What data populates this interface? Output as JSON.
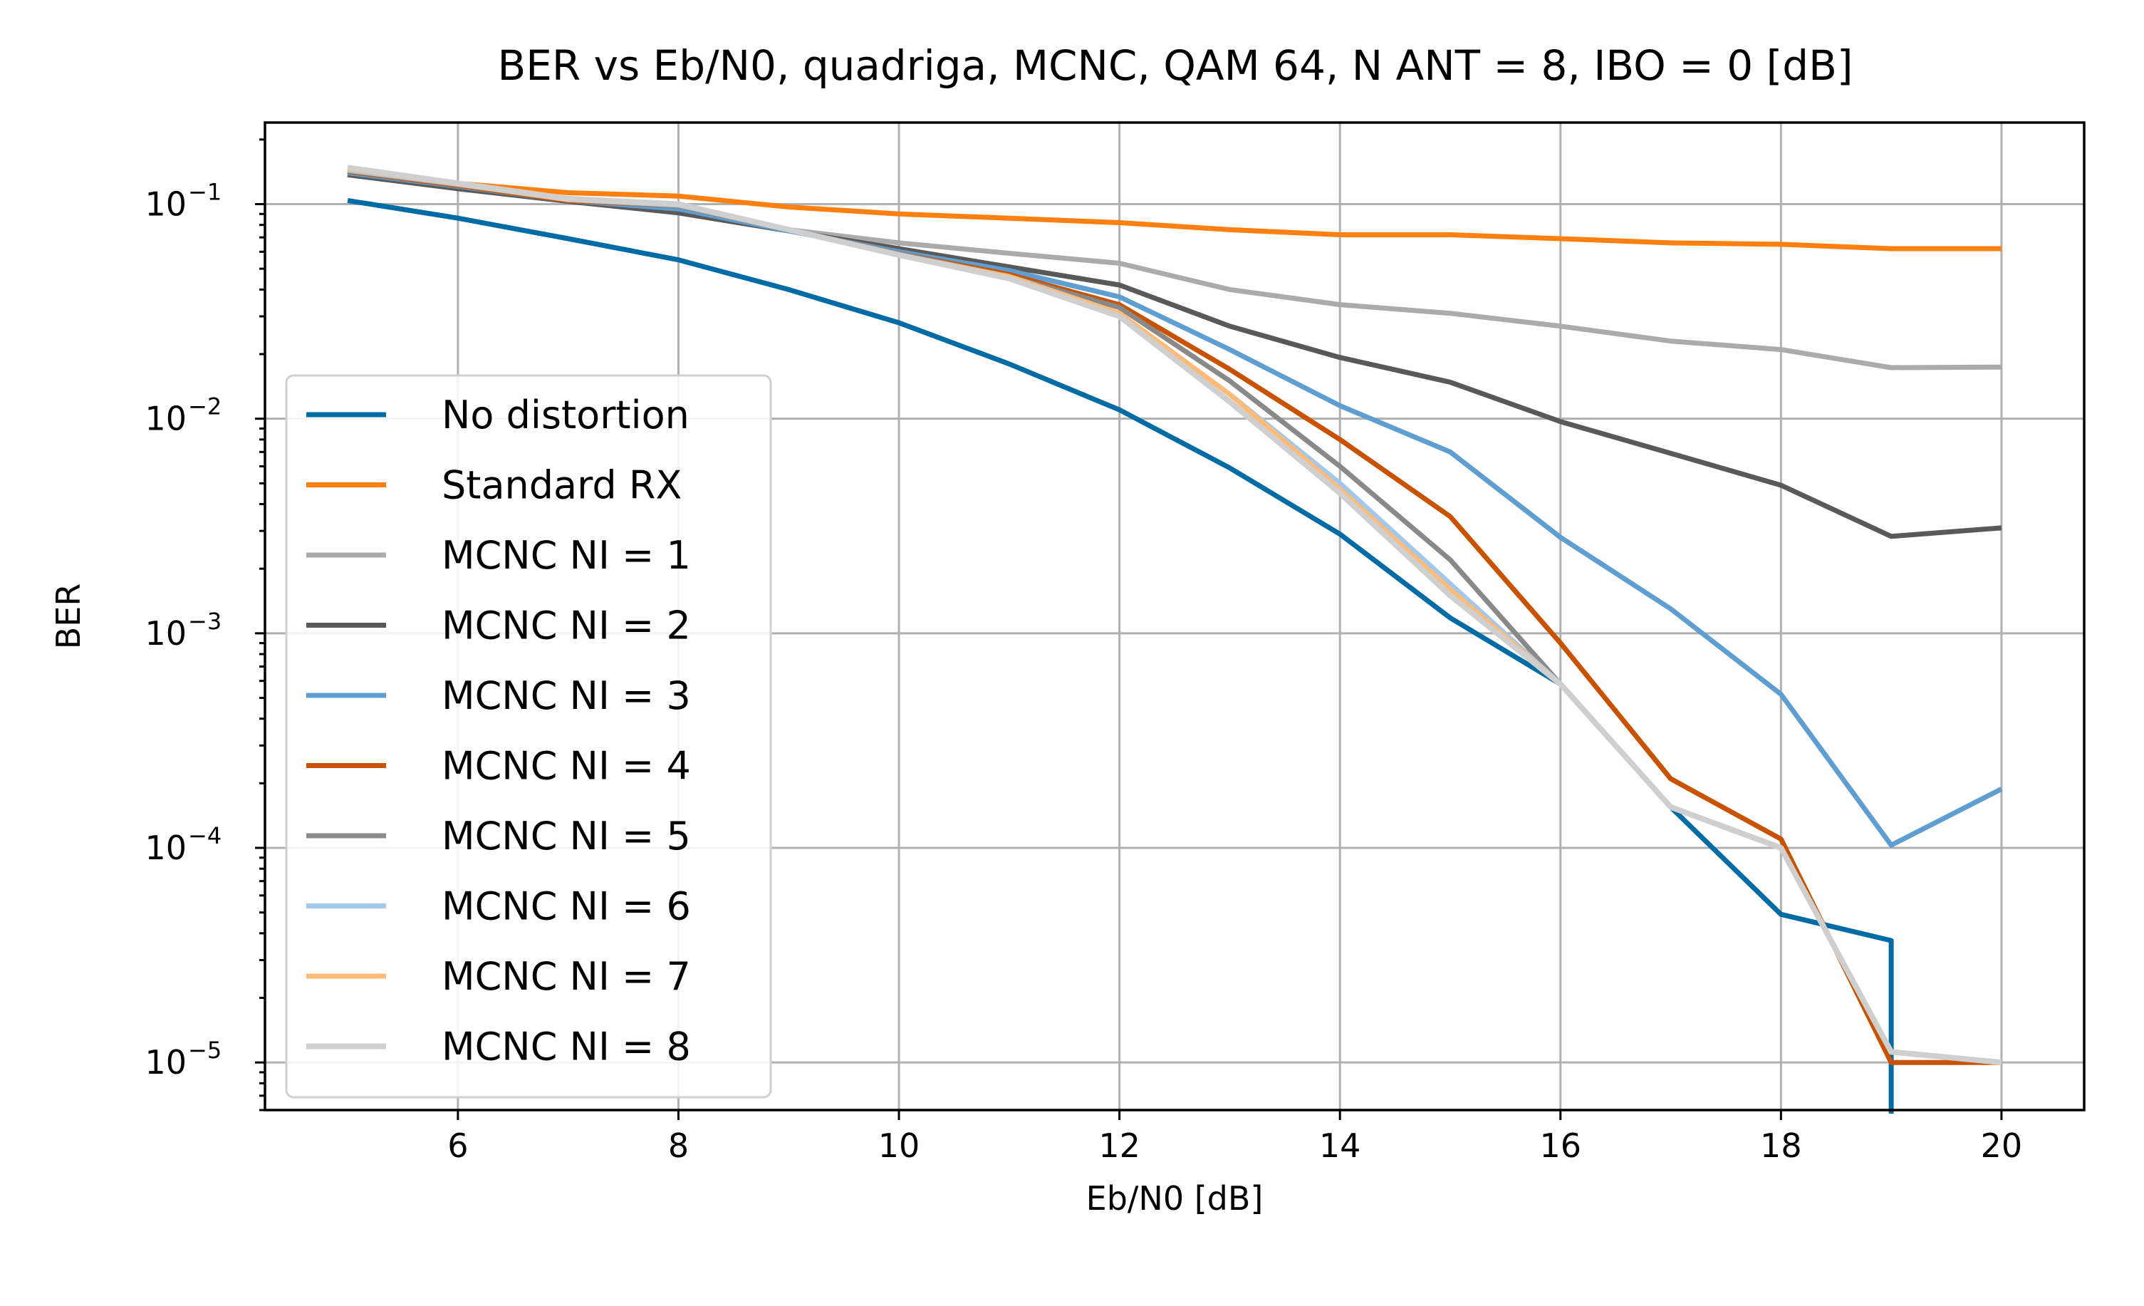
{
  "chart_data": {
    "type": "line",
    "title": "BER vs Eb/N0, quadriga, MCNC, QAM 64, N ANT = 8, IBO = 0 [dB]",
    "xlabel": "Eb/N0 [dB]",
    "ylabel": "BER",
    "xlim": [
      4.25,
      20.75
    ],
    "ylim": [
      6e-06,
      0.24
    ],
    "yscale": "log",
    "x_ticks": [
      6,
      8,
      10,
      12,
      14,
      16,
      18,
      20
    ],
    "y_ticks": [
      {
        "value": 0.1,
        "base": "10",
        "exp": "−1"
      },
      {
        "value": 0.01,
        "base": "10",
        "exp": "−2"
      },
      {
        "value": 0.001,
        "base": "10",
        "exp": "−3"
      },
      {
        "value": 0.0001,
        "base": "10",
        "exp": "−4"
      },
      {
        "value": 1e-05,
        "base": "10",
        "exp": "−5"
      }
    ],
    "grid": true,
    "legend_position": "lower-left",
    "x": [
      5,
      6,
      7,
      8,
      9,
      10,
      11,
      12,
      13,
      14,
      15,
      16,
      17,
      18,
      19,
      20
    ],
    "series": [
      {
        "name": "No distortion",
        "color": "#006ba4",
        "width": 7,
        "values": [
          0.104,
          0.086,
          0.069,
          0.055,
          0.04,
          0.028,
          0.018,
          0.011,
          0.0059,
          0.0029,
          0.00118,
          0.00058,
          0.000155,
          4.9e-05,
          3.7e-05,
          null
        ],
        "tail_drop": {
          "x": 19,
          "y_from": 3.7e-05
        }
      },
      {
        "name": "Standard RX",
        "color": "#ff800e",
        "width": 7,
        "values": [
          0.143,
          0.125,
          0.113,
          0.109,
          0.097,
          0.09,
          0.086,
          0.082,
          0.076,
          0.072,
          0.072,
          0.069,
          0.066,
          0.065,
          0.062,
          0.062
        ]
      },
      {
        "name": "MCNC NI = 1",
        "color": "#ababab",
        "width": 7,
        "values": [
          0.138,
          0.12,
          0.104,
          0.092,
          0.076,
          0.066,
          0.059,
          0.053,
          0.04,
          0.034,
          0.031,
          0.027,
          0.023,
          0.021,
          0.0173,
          0.0174
        ]
      },
      {
        "name": "MCNC NI = 2",
        "color": "#595959",
        "width": 7,
        "values": [
          0.137,
          0.118,
          0.103,
          0.091,
          0.075,
          0.062,
          0.051,
          0.042,
          0.027,
          0.0193,
          0.0148,
          0.0097,
          0.0069,
          0.0049,
          0.00283,
          0.0031
        ]
      },
      {
        "name": "MCNC NI = 3",
        "color": "#5f9ed1",
        "width": 7,
        "values": [
          0.14,
          0.121,
          0.104,
          0.095,
          0.075,
          0.06,
          0.049,
          0.037,
          0.021,
          0.0115,
          0.007,
          0.0028,
          0.0013,
          0.00052,
          0.000103,
          0.000188
        ]
      },
      {
        "name": "MCNC NI = 4",
        "color": "#c85200",
        "width": 7,
        "values": [
          0.142,
          0.122,
          0.104,
          0.098,
          0.076,
          0.059,
          0.047,
          0.034,
          0.017,
          0.008,
          0.0035,
          0.0009,
          0.00021,
          0.00011,
          1e-05,
          1e-05
        ]
      },
      {
        "name": "MCNC NI = 5",
        "color": "#898989",
        "width": 7,
        "values": [
          0.143,
          0.123,
          0.105,
          0.098,
          0.076,
          0.059,
          0.046,
          0.033,
          0.015,
          0.006,
          0.0022,
          0.00058,
          0.000155,
          0.0001,
          1.12e-05,
          1e-05
        ]
      },
      {
        "name": "MCNC NI = 6",
        "color": "#a2c8ec",
        "width": 7,
        "values": [
          0.144,
          0.124,
          0.105,
          0.099,
          0.076,
          0.058,
          0.046,
          0.031,
          0.013,
          0.005,
          0.0017,
          0.00058,
          0.000155,
          0.0001,
          1.12e-05,
          1e-05
        ]
      },
      {
        "name": "MCNC NI = 7",
        "color": "#ffbc79",
        "width": 7,
        "values": [
          0.146,
          0.124,
          0.105,
          0.1,
          0.076,
          0.058,
          0.046,
          0.031,
          0.013,
          0.0047,
          0.0016,
          0.00058,
          0.000155,
          0.0001,
          1.12e-05,
          1e-05
        ]
      },
      {
        "name": "MCNC NI = 8",
        "color": "#cfcfcf",
        "width": 8,
        "values": [
          0.148,
          0.125,
          0.106,
          0.1,
          0.076,
          0.058,
          0.045,
          0.03,
          0.012,
          0.0045,
          0.0015,
          0.00058,
          0.000155,
          0.0001,
          1.12e-05,
          1e-05
        ]
      }
    ]
  }
}
